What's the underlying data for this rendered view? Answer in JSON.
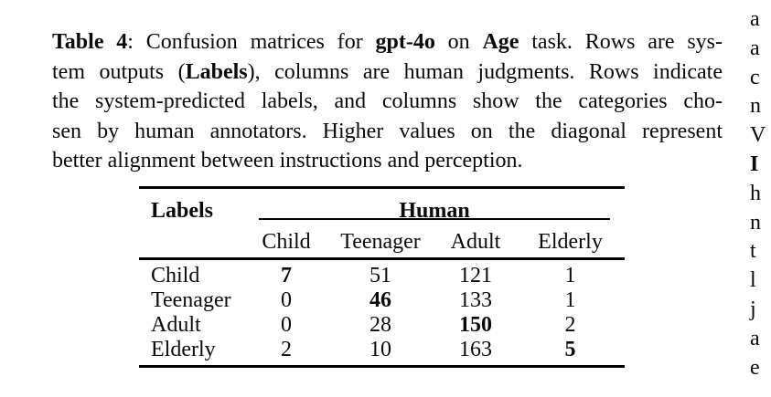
{
  "page": {
    "background": "#ffffff",
    "text_color": "#0a0a0a"
  },
  "caption": {
    "lines": [
      {
        "segments": [
          {
            "t": "Table 4",
            "b": true
          },
          {
            "t": ": Confusion matrices for ",
            "b": false
          },
          {
            "t": "gpt-4o",
            "b": true
          },
          {
            "t": " on ",
            "b": false
          },
          {
            "t": "Age",
            "b": true
          },
          {
            "t": " task. Rows are sys-",
            "b": false
          }
        ],
        "last": false
      },
      {
        "segments": [
          {
            "t": "tem outputs (",
            "b": false
          },
          {
            "t": "Labels",
            "b": true
          },
          {
            "t": "), columns are human judgments. Rows indicate",
            "b": false
          }
        ],
        "last": false
      },
      {
        "segments": [
          {
            "t": "the system-predicted labels, and columns show the categories cho-",
            "b": false
          }
        ],
        "last": false
      },
      {
        "segments": [
          {
            "t": "sen by human annotators. Higher values on the diagonal represent",
            "b": false
          }
        ],
        "last": false
      },
      {
        "segments": [
          {
            "t": "better alignment between instructions and perception.",
            "b": false
          }
        ],
        "last": true
      }
    ]
  },
  "table": {
    "labels_header": "Labels",
    "group_header": "Human",
    "columns": [
      "Child",
      "Teenager",
      "Adult",
      "Elderly"
    ],
    "rows": [
      {
        "label": "Child",
        "values": [
          "7",
          "51",
          "121",
          "1"
        ],
        "bold_index": 0
      },
      {
        "label": "Teenager",
        "values": [
          "0",
          "46",
          "133",
          "1"
        ],
        "bold_index": 1
      },
      {
        "label": "Adult",
        "values": [
          "0",
          "28",
          "150",
          "2"
        ],
        "bold_index": 2
      },
      {
        "label": "Elderly",
        "values": [
          "2",
          "10",
          "163",
          "5"
        ],
        "bold_index": 3
      }
    ]
  },
  "adjacent_column_fragments": [
    {
      "t": "a",
      "b": false
    },
    {
      "t": "a",
      "b": false
    },
    {
      "t": "c",
      "b": false
    },
    {
      "t": "n",
      "b": false
    },
    {
      "t": "V",
      "b": false
    },
    {
      "t": "I",
      "b": true
    },
    {
      "t": "h",
      "b": false
    },
    {
      "t": "n",
      "b": false
    },
    {
      "t": "t",
      "b": false
    },
    {
      "t": "l",
      "b": false
    },
    {
      "t": "j",
      "b": false
    },
    {
      "t": "a",
      "b": false
    },
    {
      "t": "e",
      "b": false
    }
  ],
  "chart_data": {
    "type": "table",
    "title": "Confusion matrix for gpt-4o on Age task",
    "row_axis_label": "Labels (system outputs)",
    "col_axis_label": "Human (human judgments)",
    "columns": [
      "Child",
      "Teenager",
      "Adult",
      "Elderly"
    ],
    "row_labels": [
      "Child",
      "Teenager",
      "Adult",
      "Elderly"
    ],
    "matrix": [
      [
        7,
        51,
        121,
        1
      ],
      [
        0,
        46,
        133,
        1
      ],
      [
        0,
        28,
        150,
        2
      ],
      [
        2,
        10,
        163,
        5
      ]
    ],
    "diagonal_bold": [
      7,
      46,
      150,
      5
    ]
  }
}
